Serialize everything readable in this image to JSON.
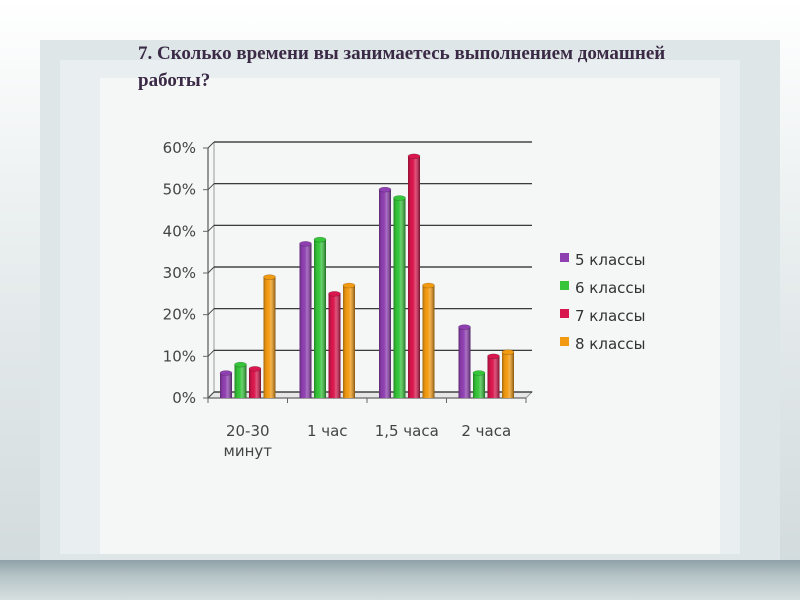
{
  "slide": {
    "title": "7. Сколько времени вы занимаетесь выполнением домашней работы?"
  },
  "colors": {
    "5 классы": "#8e3fb0",
    "6 классы": "#36c43a",
    "7 классы": "#d8174e",
    "8 классы": "#f29a12"
  },
  "chart_data": {
    "type": "bar",
    "categories": [
      "20-30 минут",
      "1 час",
      "1,5 часа",
      "2 часа"
    ],
    "category_lines": [
      [
        "20-30",
        "минут"
      ],
      [
        "1 час"
      ],
      [
        "1,5 часа"
      ],
      [
        "2 часа"
      ]
    ],
    "series": [
      {
        "name": "5 классы",
        "values": [
          6,
          37,
          50,
          17
        ]
      },
      {
        "name": "6 классы",
        "values": [
          8,
          38,
          48,
          6
        ]
      },
      {
        "name": "7 классы",
        "values": [
          7,
          25,
          58,
          10
        ]
      },
      {
        "name": "8 классы",
        "values": [
          29,
          27,
          27,
          11
        ]
      }
    ],
    "yticks": [
      "0%",
      "10%",
      "20%",
      "30%",
      "40%",
      "50%",
      "60%"
    ],
    "ylim": [
      0,
      60
    ],
    "grid": true,
    "legend_position": "right",
    "style": "3d-cylinder-bars"
  }
}
